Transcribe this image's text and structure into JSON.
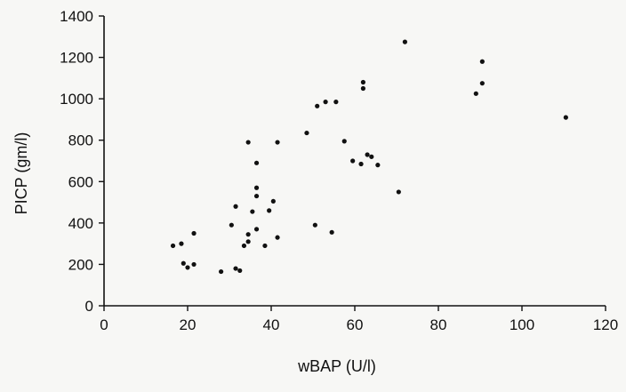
{
  "chart_data": {
    "type": "scatter",
    "title": "",
    "xlabel": "wBAP (U/l)",
    "ylabel": "PICP (gm/l)",
    "xlim": [
      0,
      120
    ],
    "ylim": [
      0,
      1400
    ],
    "xticks": [
      0,
      20,
      40,
      60,
      80,
      100,
      120
    ],
    "yticks": [
      0,
      200,
      400,
      600,
      800,
      1000,
      1200,
      1400
    ],
    "x_tick_labels": [
      "0",
      "20",
      "40",
      "60",
      "80",
      "100",
      "120"
    ],
    "y_tick_labels": [
      "0",
      "200",
      "400",
      "600",
      "800",
      "1000",
      "1200",
      "1400"
    ],
    "grid": false,
    "legend": "none",
    "point_color": "#111111",
    "series": [
      {
        "points": [
          [
            16.5,
            290
          ],
          [
            18.5,
            300
          ],
          [
            19,
            205
          ],
          [
            20,
            185
          ],
          [
            21.5,
            200
          ],
          [
            21.5,
            350
          ],
          [
            28,
            165
          ],
          [
            30.5,
            390
          ],
          [
            31.5,
            180
          ],
          [
            31.5,
            480
          ],
          [
            32.5,
            170
          ],
          [
            33.5,
            290
          ],
          [
            34.5,
            345
          ],
          [
            34.5,
            310
          ],
          [
            34.5,
            790
          ],
          [
            35.5,
            455
          ],
          [
            36.5,
            370
          ],
          [
            36.5,
            530
          ],
          [
            36.5,
            570
          ],
          [
            36.5,
            690
          ],
          [
            38.5,
            290
          ],
          [
            39.5,
            460
          ],
          [
            40.5,
            505
          ],
          [
            41.5,
            330
          ],
          [
            41.5,
            790
          ],
          [
            48.5,
            835
          ],
          [
            50.5,
            390
          ],
          [
            51,
            965
          ],
          [
            53,
            985
          ],
          [
            54.5,
            355
          ],
          [
            55.5,
            985
          ],
          [
            57.5,
            795
          ],
          [
            59.5,
            700
          ],
          [
            61.5,
            685
          ],
          [
            62,
            1050
          ],
          [
            62,
            1080
          ],
          [
            63,
            730
          ],
          [
            64,
            720
          ],
          [
            65.5,
            680
          ],
          [
            70.5,
            550
          ],
          [
            72,
            1275
          ],
          [
            89,
            1025
          ],
          [
            90.5,
            1075
          ],
          [
            90.5,
            1180
          ],
          [
            110.5,
            910
          ]
        ]
      }
    ]
  }
}
